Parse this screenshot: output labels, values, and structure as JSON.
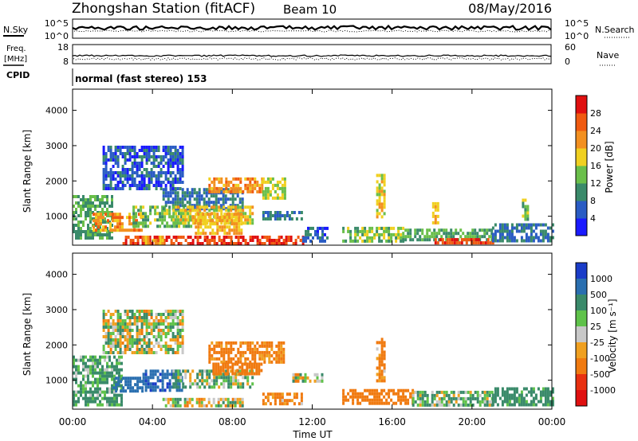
{
  "header": {
    "station": "Zhongshan Station (fitACF)",
    "beam": "Beam 10",
    "date": "08/May/2016"
  },
  "top_panels": {
    "nsky_label": "N.Sky",
    "nsearch_label": "N.Search",
    "left_ticks_top": [
      "10^5",
      "10^0"
    ],
    "right_ticks_top": [
      "10^5",
      "10^0"
    ],
    "freq_label_1": "Freq.",
    "freq_label_2": "[MHz]",
    "freq_ticks": [
      "18",
      "8"
    ],
    "nave_label": "Nave",
    "nave_ticks": [
      "60",
      "0"
    ],
    "cpid_label": "CPID",
    "cpid_text": "normal (fast stereo) 153"
  },
  "axes": {
    "ylabel": "Slant Range [km]",
    "xlabel": "Time UT",
    "y_ticks": [
      "1000",
      "2000",
      "3000",
      "4000"
    ],
    "x_ticks": [
      "00:00",
      "04:00",
      "08:00",
      "12:00",
      "16:00",
      "20:00",
      "00:00"
    ]
  },
  "power_colorbar": {
    "label": "Power [dB]",
    "ticks": [
      "4",
      "8",
      "12",
      "16",
      "20",
      "24",
      "28"
    ],
    "colors": [
      "#1a1aff",
      "#2a5cc4",
      "#3a8a6a",
      "#6abf4a",
      "#f0d020",
      "#f39020",
      "#f05a10",
      "#e01010"
    ]
  },
  "velocity_colorbar": {
    "label": "Velocity [m s⁻¹]",
    "ticks": [
      "1000",
      "500",
      "100",
      "25",
      "-25",
      "-100",
      "-500",
      "-1000"
    ],
    "colors": [
      "#1a3cc8",
      "#2a6fb0",
      "#3a8a6a",
      "#5fc24a",
      "#c8c8c8",
      "#f0a020",
      "#f07a10",
      "#e83010",
      "#e01010"
    ]
  },
  "chart_data": [
    {
      "type": "heatmap",
      "title": "Power",
      "xlabel": "Time UT",
      "ylabel": "Slant Range [km]",
      "xlim": [
        "00:00",
        "24:00"
      ],
      "ylim": [
        180,
        4600
      ],
      "colorbar": {
        "label": "Power [dB]",
        "range": [
          0,
          32
        ]
      },
      "regions": [
        {
          "t": [
            0.0,
            2.0
          ],
          "r": [
            400,
            1600
          ],
          "level": 12
        },
        {
          "t": [
            1.0,
            3.5
          ],
          "r": [
            600,
            1100
          ],
          "level": 22
        },
        {
          "t": [
            2.5,
            11.5
          ],
          "r": [
            250,
            450
          ],
          "level": 28
        },
        {
          "t": [
            3.5,
            4.5
          ],
          "r": [
            250,
            450
          ],
          "level": 20
        },
        {
          "t": [
            3.0,
            6.0
          ],
          "r": [
            700,
            1300
          ],
          "level": 14
        },
        {
          "t": [
            4.5,
            8.5
          ],
          "r": [
            1200,
            1800
          ],
          "level": 8
        },
        {
          "t": [
            5.0,
            9.0
          ],
          "r": [
            800,
            1300
          ],
          "level": 18
        },
        {
          "t": [
            6.8,
            9.5
          ],
          "r": [
            1700,
            2100
          ],
          "level": 22
        },
        {
          "t": [
            9.5,
            10.6
          ],
          "r": [
            1500,
            2100
          ],
          "level": 16
        },
        {
          "t": [
            6.0,
            8.5
          ],
          "r": [
            500,
            1100
          ],
          "level": 20
        },
        {
          "t": [
            1.5,
            5.5
          ],
          "r": [
            1800,
            3000
          ],
          "level": 6
        },
        {
          "t": [
            9.5,
            11.5
          ],
          "r": [
            950,
            1150
          ],
          "level": 8
        },
        {
          "t": [
            11.5,
            12.8
          ],
          "r": [
            300,
            700
          ],
          "level": 6
        },
        {
          "t": [
            13.5,
            16.5
          ],
          "r": [
            300,
            700
          ],
          "level": 14
        },
        {
          "t": [
            16.5,
            21.0
          ],
          "r": [
            300,
            650
          ],
          "level": 12
        },
        {
          "t": [
            18.0,
            21.0
          ],
          "r": [
            280,
            380
          ],
          "level": 28
        },
        {
          "t": [
            21.0,
            24.0
          ],
          "r": [
            300,
            800
          ],
          "level": 8
        },
        {
          "t": [
            15.2,
            15.6
          ],
          "r": [
            1000,
            2200
          ],
          "level": 18
        },
        {
          "t": [
            18.0,
            18.3
          ],
          "r": [
            800,
            1400
          ],
          "level": 20
        },
        {
          "t": [
            22.5,
            22.8
          ],
          "r": [
            800,
            1500
          ],
          "level": 14
        }
      ]
    },
    {
      "type": "heatmap",
      "title": "Velocity",
      "xlabel": "Time UT",
      "ylabel": "Slant Range [km]",
      "xlim": [
        "00:00",
        "24:00"
      ],
      "ylim": [
        180,
        4600
      ],
      "colorbar": {
        "label": "Velocity [m s⁻¹]",
        "range": [
          -1000,
          1000
        ]
      },
      "regions": [
        {
          "t": [
            0.0,
            2.5
          ],
          "r": [
            300,
            1700
          ],
          "level": 150
        },
        {
          "t": [
            2.0,
            3.5
          ],
          "r": [
            700,
            1100
          ],
          "level": 800
        },
        {
          "t": [
            3.5,
            5.5
          ],
          "r": [
            700,
            1300
          ],
          "level": 900
        },
        {
          "t": [
            4.5,
            8.5
          ],
          "r": [
            250,
            500
          ],
          "level": 0
        },
        {
          "t": [
            5.0,
            9.0
          ],
          "r": [
            800,
            1300
          ],
          "level": 60
        },
        {
          "t": [
            6.8,
            10.6
          ],
          "r": [
            1500,
            2100
          ],
          "level": -200
        },
        {
          "t": [
            7.0,
            9.5
          ],
          "r": [
            1200,
            1500
          ],
          "level": -300
        },
        {
          "t": [
            9.5,
            11.5
          ],
          "r": [
            350,
            650
          ],
          "level": -150
        },
        {
          "t": [
            1.5,
            5.5
          ],
          "r": [
            1800,
            3000
          ],
          "level": 20
        },
        {
          "t": [
            13.5,
            17.0
          ],
          "r": [
            300,
            750
          ],
          "level": -250
        },
        {
          "t": [
            17.0,
            21.0
          ],
          "r": [
            300,
            700
          ],
          "level": 80
        },
        {
          "t": [
            21.0,
            24.0
          ],
          "r": [
            300,
            800
          ],
          "level": 200
        },
        {
          "t": [
            15.2,
            15.6
          ],
          "r": [
            1000,
            2200
          ],
          "level": -150
        },
        {
          "t": [
            11.0,
            12.5
          ],
          "r": [
            1000,
            1200
          ],
          "level": 10
        }
      ]
    }
  ]
}
